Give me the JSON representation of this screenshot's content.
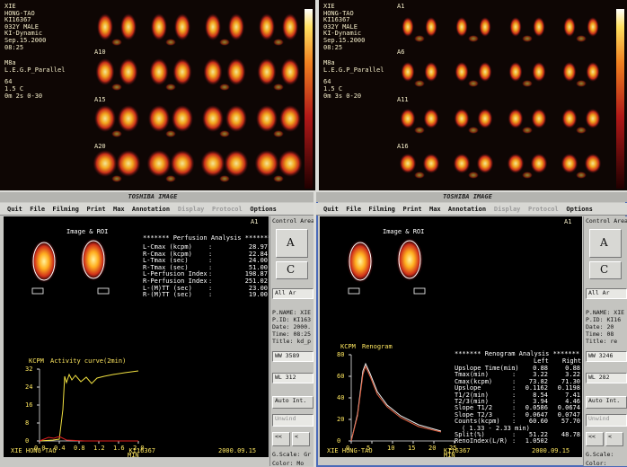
{
  "top_left": {
    "patient_info": [
      "XIE",
      "HONG-TAO",
      "KI16367",
      "032Y MALE",
      "KI-Dynamic",
      "Sep.15.2000",
      "08:25",
      "M8a",
      "L.E.G.P_Parallel",
      "64",
      "1.5 C",
      "0m 2s 0-30"
    ],
    "frame_labels": [
      "A10",
      "A15",
      "A20"
    ]
  },
  "top_right": {
    "patient_info": [
      "XIE",
      "HONG-TAO",
      "KI16367",
      "032Y MALE",
      "KI-Dynamic",
      "Sep.15.2000",
      "08:25",
      "M8a",
      "L.E.G.P_Parallel",
      "64",
      "1.5 C",
      "0m 3s 0-20"
    ],
    "frame_labels": [
      "A1",
      "A6",
      "A11",
      "A16"
    ]
  },
  "bottom_left": {
    "title": "TOSHIBA IMAGE",
    "menu": [
      "Quit",
      "File",
      "Filming",
      "Print",
      "Max",
      "Annotation",
      "Display",
      "Protocol",
      "Options"
    ],
    "frame_label": "A1",
    "roi_label": "Image & ROI",
    "analysis": {
      "title": "******* Perfusion Analysis *******",
      "rows": [
        [
          "L-Cmax (kcpm)",
          ":",
          "28.97"
        ],
        [
          "R-Cmax (kcpm)",
          ":",
          "22.84"
        ],
        [
          "L-Tmax (sec)",
          ":",
          "24.00"
        ],
        [
          "R-Tmax (sec)",
          ":",
          "51.00"
        ],
        [
          "L-Perfusion Index",
          ":",
          "198.87"
        ],
        [
          "R-Perfusion Index",
          ":",
          "251.02"
        ],
        [
          "L-(M)TT (sec)",
          ":",
          "23.00"
        ],
        [
          "R-(M)TT (sec)",
          ":",
          "19.00"
        ]
      ]
    },
    "chart": {
      "y_label": "KCPM",
      "title": "Activity curve(2min)",
      "yticks": [
        "32",
        "24",
        "16",
        "8",
        "0"
      ],
      "xticks": [
        "0.0",
        "0.4",
        "0.8",
        "1.2",
        "1.6",
        "2.0"
      ],
      "x_label": "MIN"
    },
    "footer": [
      "XIE HONG-TAO",
      "KI16367",
      "2000.09.15"
    ],
    "side_panel": [
      "Control Area",
      "A",
      "C",
      "All Ar",
      "P.NAME: XIE H",
      "P.ID: KI163",
      "Date: 2000.",
      "Time: 08:25",
      "Title: kd_p",
      "WW 3589",
      "WL 312",
      "Auto Int.",
      "Unwind",
      "<<",
      "<",
      "G.Scale: Gr",
      "Color: Mo"
    ]
  },
  "bottom_right": {
    "title": "TOSHIBA IMAGE",
    "menu": [
      "Quit",
      "File",
      "Filming",
      "Print",
      "Max",
      "Annotation",
      "Display",
      "Protocol",
      "Options"
    ],
    "frame_label": "A1",
    "roi_label": "Image & ROI",
    "analysis": {
      "title": "******* Renogram Analysis *******",
      "header": [
        "Left",
        "Right"
      ],
      "rows": [
        [
          "Upslope Time(min)",
          ":",
          "0.88",
          "0.88"
        ],
        [
          "Tmax(min)",
          ":",
          "3.22",
          "3.22"
        ],
        [
          "Cmax(kcpm)",
          ":",
          "73.82",
          "71.30"
        ],
        [
          "Upslope",
          ":",
          "0.1162",
          "0.1198"
        ],
        [
          "T1/2(min)",
          ":",
          "8.54",
          "7.41"
        ],
        [
          "T2/3(min)",
          ":",
          "3.94",
          "4.46"
        ],
        [
          "Slope T1/2",
          ":",
          "0.0586",
          "0.0674"
        ],
        [
          "Slope T2/3",
          ":",
          "0.0647",
          "0.0747"
        ],
        [
          "Counts(kcpm)",
          ":",
          "60.60",
          "57.70"
        ]
      ],
      "range": "( 1.33 - 2.33 min)",
      "rows2": [
        [
          "Split(%)",
          ":",
          "51.22",
          "48.78"
        ],
        [
          "RenoIndex(L/R)",
          ":",
          "1.0502"
        ]
      ]
    },
    "chart": {
      "y_label": "KCPM",
      "title": "Renogram",
      "yticks": [
        "80",
        "60",
        "40",
        "20",
        "0"
      ],
      "xticks": [
        "0",
        "5",
        "10",
        "15",
        "20",
        "25"
      ],
      "x_label": "MIN"
    },
    "footer": [
      "XIE HONG-TAO",
      "KI16367",
      "2000.09.15"
    ],
    "side_panel": [
      "Control Area",
      "A",
      "C",
      "All Ar",
      "P.NAME: XIE",
      "P.ID: KI16",
      "Date: 20",
      "Time: 08",
      "Title: re",
      "WW 3246",
      "WL 282",
      "Auto Int.",
      "Unwind",
      "<<",
      "<",
      "G.Scale:",
      "Color:"
    ]
  }
}
